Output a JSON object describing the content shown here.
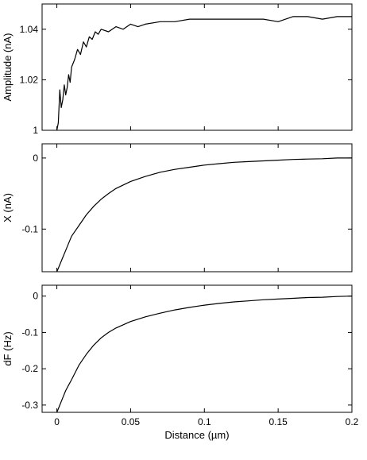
{
  "chart_data": [
    {
      "type": "line",
      "ylabel": "Amplitude (nA)",
      "xlabel": "",
      "xlim": [
        -0.01,
        0.2
      ],
      "ylim": [
        1.0,
        1.05
      ],
      "yticks": [
        1,
        1.02,
        1.04
      ],
      "ytick_labels": [
        "1",
        "1.02",
        "1.04"
      ],
      "xticks": [
        0,
        0.05,
        0.1,
        0.15,
        0.2
      ],
      "xtick_labels": [],
      "grid": false,
      "series": [
        {
          "x": [
            0.0,
            0.001,
            0.002,
            0.003,
            0.004,
            0.005,
            0.006,
            0.007,
            0.008,
            0.009,
            0.01,
            0.012,
            0.014,
            0.016,
            0.018,
            0.02,
            0.022,
            0.024,
            0.026,
            0.028,
            0.03,
            0.035,
            0.04,
            0.045,
            0.05,
            0.055,
            0.06,
            0.07,
            0.08,
            0.09,
            0.1,
            0.11,
            0.12,
            0.13,
            0.14,
            0.15,
            0.16,
            0.17,
            0.18,
            0.19,
            0.2
          ],
          "values": [
            1.0,
            1.003,
            1.016,
            1.009,
            1.012,
            1.018,
            1.014,
            1.017,
            1.022,
            1.019,
            1.025,
            1.028,
            1.032,
            1.03,
            1.035,
            1.033,
            1.037,
            1.036,
            1.039,
            1.038,
            1.04,
            1.039,
            1.041,
            1.04,
            1.042,
            1.041,
            1.042,
            1.043,
            1.043,
            1.044,
            1.044,
            1.044,
            1.044,
            1.044,
            1.044,
            1.043,
            1.045,
            1.045,
            1.044,
            1.045,
            1.045
          ]
        }
      ]
    },
    {
      "type": "line",
      "ylabel": "X (nA)",
      "xlabel": "",
      "xlim": [
        -0.01,
        0.2
      ],
      "ylim": [
        -0.16,
        0.02
      ],
      "yticks": [
        0,
        -0.1
      ],
      "ytick_labels": [
        "0",
        "-0.1"
      ],
      "xticks": [
        0,
        0.05,
        0.1,
        0.15,
        0.2
      ],
      "xtick_labels": [],
      "grid": false,
      "series": [
        {
          "x": [
            0.0,
            0.002,
            0.004,
            0.006,
            0.008,
            0.01,
            0.015,
            0.02,
            0.025,
            0.03,
            0.035,
            0.04,
            0.05,
            0.06,
            0.07,
            0.08,
            0.09,
            0.1,
            0.11,
            0.12,
            0.13,
            0.14,
            0.15,
            0.16,
            0.17,
            0.18,
            0.19,
            0.2
          ],
          "values": [
            -0.16,
            -0.15,
            -0.14,
            -0.13,
            -0.12,
            -0.11,
            -0.095,
            -0.08,
            -0.068,
            -0.058,
            -0.05,
            -0.043,
            -0.033,
            -0.026,
            -0.02,
            -0.016,
            -0.013,
            -0.01,
            -0.008,
            -0.006,
            -0.005,
            -0.004,
            -0.003,
            -0.002,
            -0.0015,
            -0.001,
            0.0,
            0.0
          ]
        }
      ]
    },
    {
      "type": "line",
      "ylabel": "dF (Hz)",
      "xlabel": "Distance (µm)",
      "xlim": [
        -0.01,
        0.2
      ],
      "ylim": [
        -0.32,
        0.03
      ],
      "yticks": [
        0,
        -0.1,
        -0.2,
        -0.3
      ],
      "ytick_labels": [
        "0",
        "-0.1",
        "-0.2",
        "-0.3"
      ],
      "xticks": [
        0,
        0.05,
        0.1,
        0.15,
        0.2
      ],
      "xtick_labels": [
        "0",
        "0.05",
        "0.1",
        "0.15",
        "0.2"
      ],
      "grid": false,
      "series": [
        {
          "x": [
            0.0,
            0.002,
            0.004,
            0.006,
            0.008,
            0.01,
            0.015,
            0.02,
            0.025,
            0.03,
            0.035,
            0.04,
            0.05,
            0.06,
            0.07,
            0.08,
            0.09,
            0.1,
            0.11,
            0.12,
            0.13,
            0.14,
            0.15,
            0.16,
            0.17,
            0.18,
            0.19,
            0.2
          ],
          "values": [
            -0.32,
            -0.3,
            -0.28,
            -0.26,
            -0.245,
            -0.23,
            -0.19,
            -0.16,
            -0.135,
            -0.115,
            -0.1,
            -0.088,
            -0.07,
            -0.057,
            -0.047,
            -0.038,
            -0.031,
            -0.025,
            -0.02,
            -0.016,
            -0.013,
            -0.01,
            -0.008,
            -0.006,
            -0.004,
            -0.003,
            -0.001,
            0.0
          ]
        }
      ]
    }
  ]
}
